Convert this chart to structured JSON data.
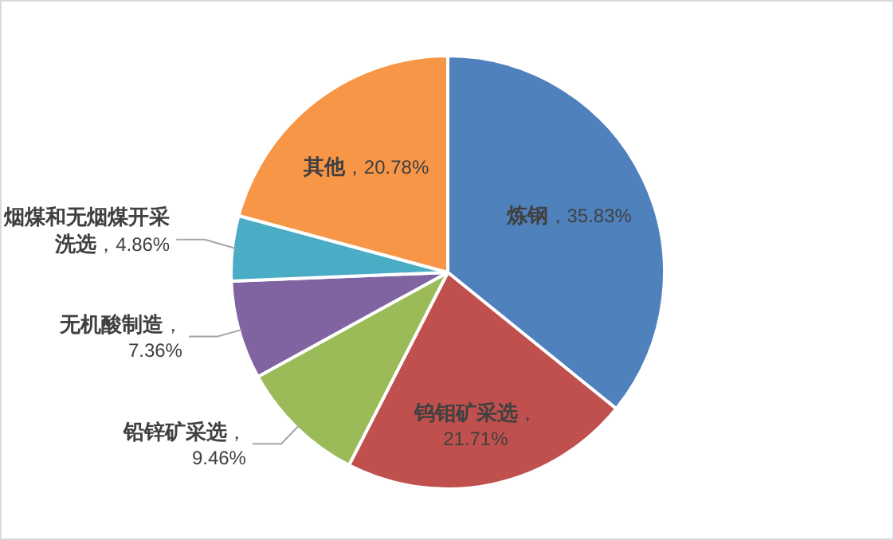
{
  "chart_data": {
    "type": "pie",
    "categories": [
      "炼钢",
      "钨钼矿采选",
      "铅锌矿采选",
      "无机酸制造",
      "烟煤和无烟煤开采洗选",
      "其他"
    ],
    "values": [
      35.83,
      21.71,
      9.46,
      7.36,
      4.86,
      20.78
    ],
    "colors": [
      "#4f81bd",
      "#c0504d",
      "#9bbb59",
      "#8064a2",
      "#4bacc6",
      "#f79646"
    ],
    "value_labels": [
      "，35.83%",
      "，21.71%",
      "，9.46%",
      "，7.36%",
      "，4.86%",
      "，20.78%"
    ],
    "legend": false
  }
}
